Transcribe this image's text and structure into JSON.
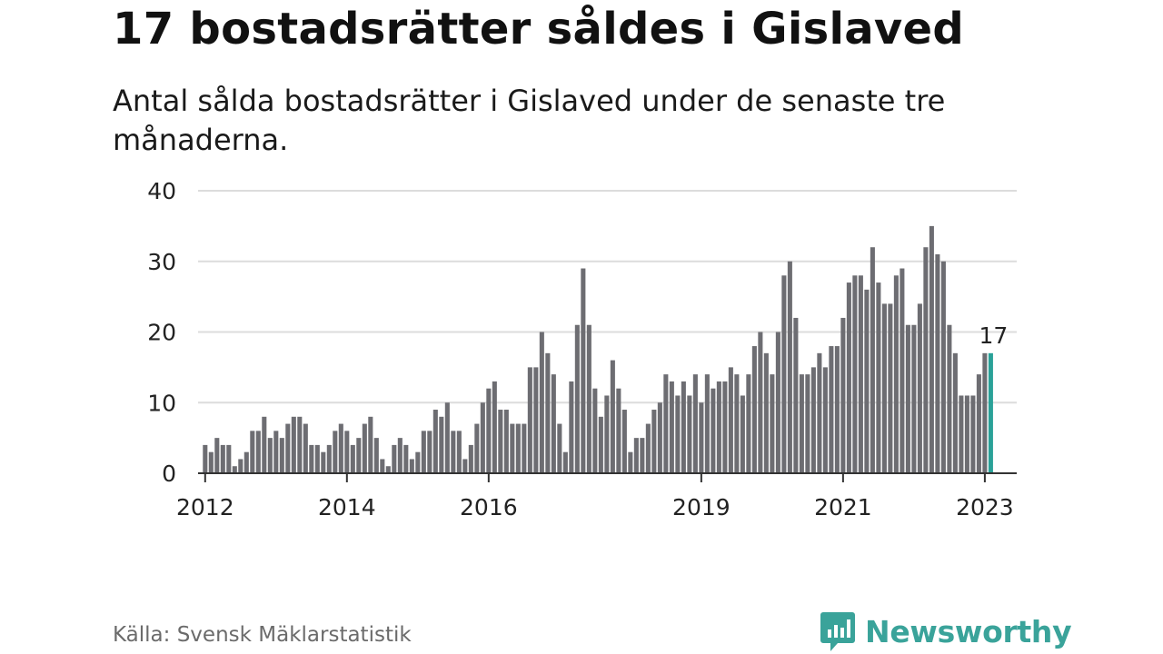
{
  "title": "17 bostadsrätter såldes i Gislaved",
  "subtitle": "Antal sålda bostadsrätter i Gislaved under de senaste tre månaderna.",
  "source": "Källa: Svensk Mäklarstatistik",
  "brand": {
    "name": "Newsworthy",
    "icon": "newsworthy-logo-icon"
  },
  "colors": {
    "bar": "#6d6d72",
    "highlight": "#2aa198",
    "grid": "#dcdcdc",
    "axis": "#333333",
    "brand": "#3aa39a"
  },
  "chart_data": {
    "type": "bar",
    "title": "17 bostadsrätter såldes i Gislaved",
    "xlabel": "",
    "ylabel": "",
    "ylim": [
      0,
      40
    ],
    "yticks": [
      0,
      10,
      20,
      30,
      40
    ],
    "xlim": [
      2011.9,
      2023.45
    ],
    "xticks": [
      {
        "label": "2012",
        "value": 2012
      },
      {
        "label": "2014",
        "value": 2014
      },
      {
        "label": "2016",
        "value": 2016
      },
      {
        "label": "2019",
        "value": 2019
      },
      {
        "label": "2021",
        "value": 2021
      },
      {
        "label": "2023",
        "value": 2023
      }
    ],
    "start": {
      "year": 2012,
      "month": 1
    },
    "unit": "month",
    "values": [
      4,
      3,
      5,
      4,
      4,
      1,
      2,
      3,
      6,
      6,
      8,
      5,
      6,
      5,
      7,
      8,
      8,
      7,
      4,
      4,
      3,
      4,
      6,
      7,
      6,
      4,
      5,
      7,
      8,
      5,
      2,
      1,
      4,
      5,
      4,
      2,
      3,
      6,
      6,
      9,
      8,
      10,
      6,
      6,
      2,
      4,
      7,
      10,
      12,
      13,
      9,
      9,
      7,
      7,
      7,
      15,
      15,
      20,
      17,
      14,
      7,
      3,
      13,
      21,
      29,
      21,
      12,
      8,
      11,
      16,
      12,
      9,
      3,
      5,
      5,
      7,
      9,
      10,
      14,
      13,
      11,
      13,
      11,
      14,
      10,
      14,
      12,
      13,
      13,
      15,
      14,
      11,
      14,
      18,
      20,
      17,
      14,
      20,
      28,
      30,
      22,
      14,
      14,
      15,
      17,
      15,
      18,
      18,
      22,
      27,
      28,
      28,
      26,
      32,
      27,
      24,
      24,
      28,
      29,
      21,
      21,
      24,
      32,
      35,
      31,
      30,
      21,
      17,
      11,
      11,
      11,
      14,
      17,
      17
    ],
    "highlight_last": true,
    "annotation": {
      "label": "17",
      "value": 17
    }
  }
}
